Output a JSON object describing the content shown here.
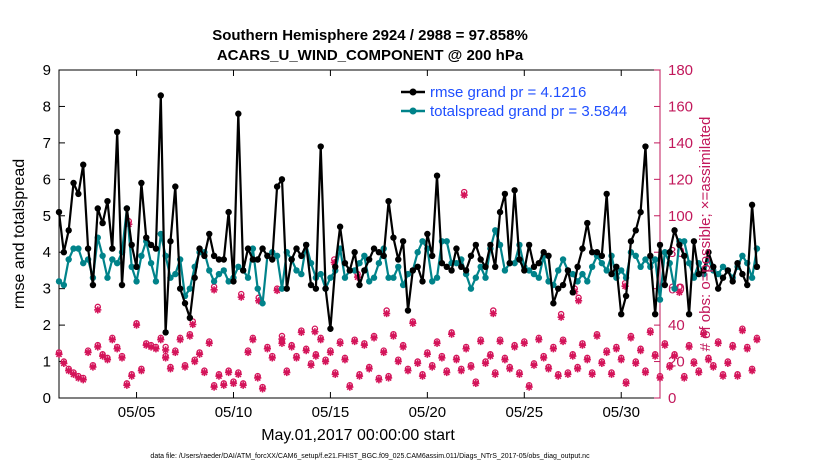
{
  "chart_data": {
    "type": "line",
    "title": "Southern Hemisphere 2924 / 2988 = 97.858%",
    "subtitle": "ACARS_U_WIND_COMPONENT @ 200 hPa",
    "xlabel": "May.01,2017 00:00:00 start",
    "ylabel": "rmse and totalspread",
    "y2label": "# of obs: o=possible; ×=assimilated",
    "footnote": "data file: /Users/raeder/DAI/ATM_forcXX/CAM6_setup/f.e21.FHIST_BGC.f09_025.CAM6assim.011/Diags_NTrS_2017-05/obs_diag_output.nc",
    "xlim": [
      1.0,
      32.0
    ],
    "ylim": [
      0,
      9
    ],
    "y2lim": [
      0,
      180
    ],
    "x_ticks": [
      5,
      10,
      15,
      20,
      25,
      30
    ],
    "x_tick_labels": [
      "05/05",
      "05/10",
      "05/15",
      "05/20",
      "05/25",
      "05/30"
    ],
    "y_ticks": [
      0,
      1,
      2,
      3,
      4,
      5,
      6,
      7,
      8,
      9
    ],
    "y2_ticks": [
      0,
      20,
      40,
      60,
      80,
      100,
      120,
      140,
      160,
      180
    ],
    "colors": {
      "rmse": "#000000",
      "spread": "#00838a",
      "obs": "#d4145a",
      "y2axis": "#c2185b",
      "legend_text": "#1f4fff"
    },
    "legend": [
      {
        "label": "rmse grand pr = 4.1216"
      },
      {
        "label": "totalspread grand pr = 3.5844"
      }
    ],
    "x_start": 1.0,
    "x_step": 0.25,
    "series": [
      {
        "name": "rmse",
        "values": [
          5.1,
          4.0,
          4.6,
          5.9,
          5.6,
          6.4,
          4.1,
          3.1,
          5.2,
          4.8,
          5.4,
          4.1,
          7.3,
          3.1,
          5.2,
          4.2,
          3.6,
          5.9,
          4.4,
          4.2,
          4.1,
          8.3,
          1.8,
          4.3,
          5.8,
          3.0,
          2.6,
          2.2,
          3.3,
          4.1,
          3.9,
          4.5,
          3.9,
          3.8,
          3.8,
          5.1,
          3.2,
          7.8,
          3.5,
          4.1,
          3.8,
          3.8,
          4.1,
          3.9,
          3.8,
          5.8,
          6.0,
          3.0,
          3.8,
          4.1,
          3.9,
          4.2,
          3.1,
          3.0,
          6.9,
          3.0,
          1.9,
          3.6,
          4.7,
          3.7,
          3.5,
          4.0,
          3.1,
          3.5,
          3.8,
          4.1,
          4.0,
          3.9,
          5.4,
          4.4,
          3.8,
          4.3,
          2.4,
          3.5,
          3.6,
          3.2,
          4.5,
          3.9,
          6.1,
          3.7,
          3.6,
          3.5,
          4.1,
          3.6,
          3.5,
          3.9,
          4.2,
          3.8,
          3.6,
          4.2,
          3.6,
          5.1,
          5.6,
          3.7,
          5.7,
          3.8,
          3.5,
          4.2,
          3.6,
          3.7,
          4.0,
          3.9,
          2.6,
          3.0,
          3.1,
          3.5,
          2.9,
          3.6,
          4.1,
          4.8,
          4.0,
          4.0,
          3.9,
          5.6,
          3.4,
          3.6,
          2.3,
          2.8,
          4.3,
          4.6,
          5.1,
          6.9,
          3.9,
          2.3,
          4.2,
          3.1,
          4.0,
          4.6,
          4.2,
          3.9,
          2.3,
          4.3,
          3.4,
          3.5,
          4.0,
          3.6,
          3.0,
          3.3,
          3.5,
          3.2,
          3.7,
          3.4,
          3.1,
          5.3,
          3.6
        ]
      },
      {
        "name": "totalspread",
        "values": [
          3.2,
          3.1,
          3.8,
          4.1,
          4.1,
          3.7,
          3.8,
          3.3,
          4.4,
          3.9,
          3.3,
          3.8,
          3.7,
          4.0,
          5.2,
          3.6,
          3.2,
          3.9,
          4.3,
          3.7,
          3.2,
          4.5,
          3.9,
          3.3,
          3.4,
          3.8,
          2.8,
          3.0,
          3.6,
          4.0,
          4.0,
          3.5,
          3.2,
          3.4,
          3.5,
          3.2,
          3.3,
          3.6,
          3.5,
          3.3,
          4.1,
          3.0,
          2.6,
          3.9,
          4.0,
          3.9,
          3.0,
          4.0,
          3.8,
          3.5,
          3.4,
          4.2,
          3.7,
          3.3,
          3.4,
          3.0,
          3.3,
          3.5,
          4.1,
          3.3,
          3.5,
          3.5,
          3.7,
          3.9,
          3.2,
          3.3,
          3.7,
          4.1,
          3.3,
          3.3,
          3.6,
          3.1,
          3.4,
          3.5,
          4.0,
          4.3,
          4.1,
          3.2,
          3.3,
          4.3,
          4.3,
          3.7,
          3.7,
          3.8,
          3.4,
          3.0,
          3.3,
          3.6,
          3.3,
          4.1,
          4.6,
          4.2,
          3.5,
          3.7,
          3.7,
          4.2,
          3.6,
          3.5,
          3.4,
          3.3,
          3.9,
          3.2,
          3.1,
          3.5,
          3.8,
          3.5,
          3.4,
          3.2,
          3.4,
          3.2,
          3.6,
          3.9,
          3.7,
          3.5,
          3.9,
          3.3,
          3.5,
          3.3,
          4.0,
          3.9,
          3.6,
          3.8,
          3.6,
          3.8,
          2.7,
          4.0,
          3.7,
          3.0,
          4.3,
          4.3,
          3.7,
          3.3,
          3.7,
          3.4,
          3.8,
          3.5,
          3.4,
          3.6,
          3.5,
          3.3,
          3.6,
          3.9,
          3.7,
          3.3,
          4.1
        ]
      },
      {
        "name": "obs_possible",
        "values": [
          25,
          20,
          16,
          14,
          12,
          11,
          26,
          18,
          29,
          24,
          22,
          33,
          28,
          23,
          8,
          13,
          41,
          16,
          30,
          29,
          28,
          33,
          23,
          17,
          26,
          33,
          18,
          35,
          21,
          25,
          15,
          31,
          7,
          13,
          8,
          15,
          9,
          14,
          8,
          26,
          33,
          12,
          6,
          28,
          23,
          60,
          31,
          15,
          29,
          23,
          37,
          27,
          19,
          24,
          33,
          21,
          26,
          14,
          31,
          22,
          7,
          32,
          13,
          30,
          17,
          34,
          11,
          26,
          12,
          35,
          21,
          29,
          16,
          42,
          20,
          13,
          25,
          18,
          31,
          23,
          15,
          36,
          22,
          16,
          28,
          18,
          9,
          32,
          20,
          24,
          14,
          32,
          22,
          17,
          29,
          14,
          31,
          7,
          19,
          33,
          23,
          17,
          28,
          13,
          32,
          14,
          24,
          17,
          30,
          22,
          14,
          35,
          20,
          26,
          14,
          28,
          22,
          9,
          34,
          20,
          27,
          15,
          37,
          24,
          12,
          30,
          18,
          24,
          61,
          12,
          29,
          20,
          15,
          36,
          22,
          18,
          31,
          13,
          20,
          29,
          13,
          38,
          28,
          16,
          33
        ]
      },
      {
        "name": "obs_assimilated",
        "values": [
          24,
          19,
          15,
          13,
          11,
          10,
          25,
          17,
          28,
          23,
          21,
          32,
          27,
          22,
          7,
          12,
          40,
          15,
          29,
          28,
          27,
          32,
          22,
          16,
          25,
          32,
          17,
          34,
          20,
          24,
          14,
          30,
          6,
          12,
          7,
          14,
          8,
          13,
          7,
          25,
          32,
          11,
          5,
          27,
          22,
          59,
          30,
          14,
          28,
          22,
          36,
          26,
          18,
          23,
          32,
          20,
          25,
          13,
          30,
          21,
          6,
          31,
          12,
          29,
          16,
          33,
          10,
          25,
          11,
          34,
          20,
          28,
          15,
          41,
          19,
          12,
          24,
          17,
          30,
          22,
          14,
          35,
          21,
          15,
          27,
          17,
          8,
          31,
          19,
          23,
          13,
          31,
          21,
          16,
          28,
          13,
          30,
          6,
          18,
          32,
          22,
          16,
          27,
          12,
          31,
          13,
          23,
          16,
          29,
          21,
          13,
          34,
          19,
          25,
          13,
          27,
          21,
          8,
          33,
          19,
          26,
          14,
          36,
          23,
          11,
          29,
          17,
          23,
          58,
          11,
          28,
          19,
          14,
          35,
          21,
          17,
          30,
          12,
          19,
          28,
          12,
          37,
          27,
          15,
          32
        ]
      }
    ],
    "extra_obs_markers": [
      {
        "x": 3.0,
        "possible": 50
      },
      {
        "x": 6.5,
        "possible": 28
      },
      {
        "x": 7.9,
        "possible": 42
      },
      {
        "x": 10.4,
        "possible": 57
      },
      {
        "x": 11.3,
        "possible": 55
      },
      {
        "x": 14.2,
        "possible": 38
      },
      {
        "x": 15.2,
        "possible": 76
      },
      {
        "x": 16.4,
        "possible": 68
      },
      {
        "x": 21.9,
        "possible": 113
      },
      {
        "x": 23.4,
        "possible": 48
      },
      {
        "x": 27.6,
        "possible": 60
      },
      {
        "x": 27.8,
        "possible": 55
      },
      {
        "x": 30.2,
        "possible": 63
      },
      {
        "x": 4.6,
        "possible": 97
      },
      {
        "x": 9.0,
        "possible": 61
      },
      {
        "x": 12.5,
        "possible": 34
      },
      {
        "x": 17.9,
        "possible": 48
      },
      {
        "x": 26.9,
        "possible": 46
      }
    ]
  }
}
